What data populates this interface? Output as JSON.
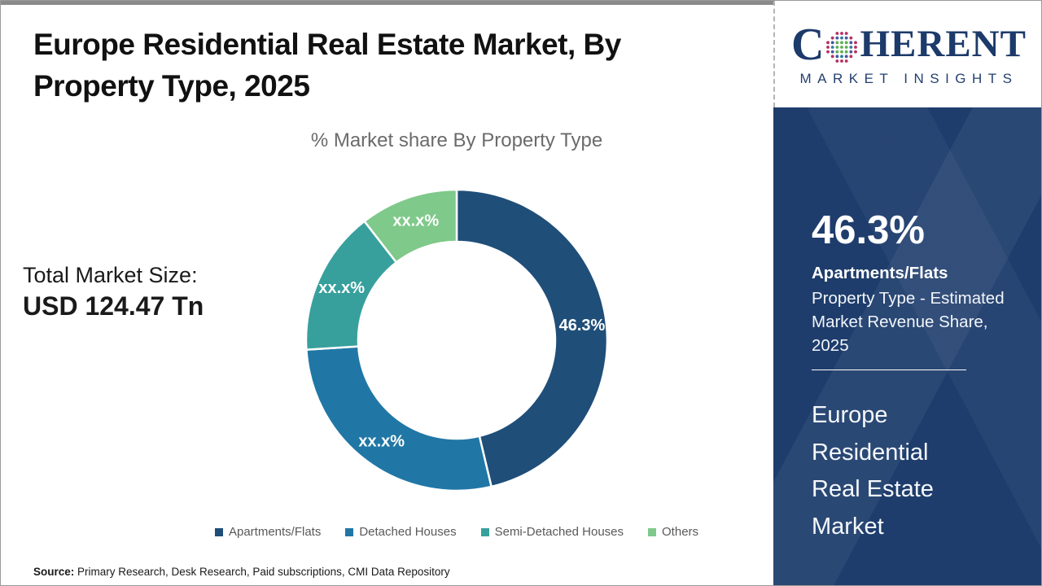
{
  "header": {
    "title_line1": "Europe Residential Real Estate Market, By",
    "title_line2": "Property Type, 2025"
  },
  "logo": {
    "prefix": "C",
    "suffix": "HERENT",
    "tagline": "MARKET INSIGHTS",
    "brand_color": "#1c3a6a",
    "globe_colors": {
      "inner": "#5fae53",
      "middle": "#2e7ca6",
      "middle_alt": "#45589e",
      "outer": "#b72f62"
    }
  },
  "total_market": {
    "label": "Total Market Size:",
    "value": "USD 124.47 Tn"
  },
  "chart_data": {
    "type": "pie",
    "variant": "donut",
    "title": "% Market share By Property Type",
    "categories": [
      "Apartments/Flats",
      "Detached Houses",
      "Semi-Detached Houses",
      "Others"
    ],
    "values": [
      46.3,
      27.7,
      15.5,
      10.5
    ],
    "slice_labels": [
      "46.3%",
      "xx.x%",
      "xx.x%",
      "xx.x%"
    ],
    "colors": [
      "#1F4E79",
      "#2077A6",
      "#38A09C",
      "#7FC98A"
    ],
    "start_angle_deg": 0,
    "direction": "clockwise",
    "inner_radius_ratio": 0.654,
    "label_color": "#ffffff",
    "legend_position": "bottom"
  },
  "sidebar": {
    "stat_value": "46.3%",
    "stat_label": "Apartments/Flats",
    "stat_desc": "Property Type - Estimated Market Revenue Share, 2025",
    "market_name_lines": [
      "Europe",
      "Residential",
      "Real Estate",
      "Market"
    ],
    "bg_color": "#1e3d6c"
  },
  "footer": {
    "source_label": "Source:",
    "source_text": " Primary Research, Desk Research, Paid subscriptions, CMI Data Repository"
  }
}
